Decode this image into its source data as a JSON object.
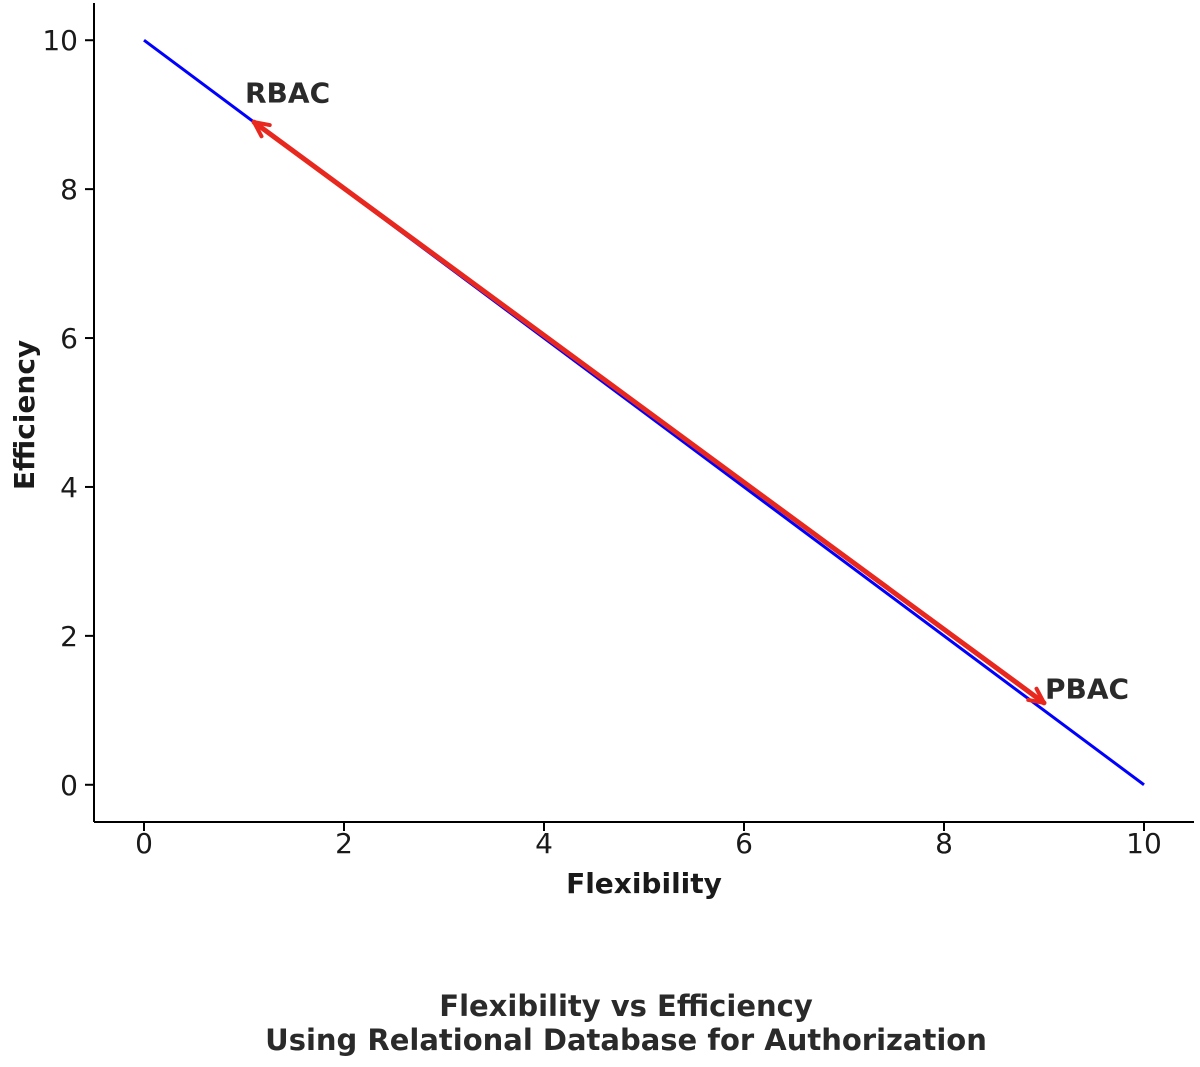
{
  "chart_data": {
    "type": "line",
    "title_lines": [
      "Flexibility vs Efficiency",
      "Using Relational Database for Authorization"
    ],
    "xlabel": "Flexibility",
    "ylabel": "Efficiency",
    "xlim": [
      -0.5,
      10.5
    ],
    "ylim": [
      -0.5,
      10.5
    ],
    "x_ticks": [
      0,
      2,
      4,
      6,
      8,
      10
    ],
    "y_ticks": [
      0,
      2,
      4,
      6,
      8,
      10
    ],
    "grid": false,
    "series": [
      {
        "x": [
          0,
          10
        ],
        "y": [
          10,
          0
        ],
        "color": "#0000ff"
      }
    ],
    "arrow": {
      "from": [
        9,
        1.1
      ],
      "to": [
        1.1,
        8.9
      ],
      "heads": "both",
      "color": "#e8281e"
    },
    "annotations": [
      {
        "text": "RBAC",
        "x": 1.0,
        "y": 9.0
      },
      {
        "text": "PBAC",
        "x": 9.0,
        "y": 1.0
      }
    ]
  }
}
